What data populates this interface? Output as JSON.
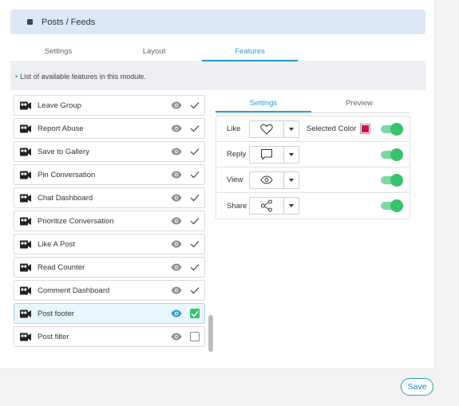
{
  "header": {
    "title": "Posts / Feeds",
    "icon": "module-icon"
  },
  "tabs": [
    {
      "label": "Settings",
      "active": false
    },
    {
      "label": "Layout",
      "active": false
    },
    {
      "label": "Features",
      "active": true
    }
  ],
  "info": {
    "text": "List of available features in this module."
  },
  "features": [
    {
      "label": "Leave Group",
      "enabled": true,
      "selected": false
    },
    {
      "label": "Report Abuse",
      "enabled": true,
      "selected": false
    },
    {
      "label": "Save to Gallery",
      "enabled": true,
      "selected": false
    },
    {
      "label": "Pin Conversation",
      "enabled": true,
      "selected": false
    },
    {
      "label": "Chat Dashboard",
      "enabled": true,
      "selected": false
    },
    {
      "label": "Prioritize Conversation",
      "enabled": true,
      "selected": false
    },
    {
      "label": "Like A Post",
      "enabled": true,
      "selected": false
    },
    {
      "label": "Read Counter",
      "enabled": true,
      "selected": false
    },
    {
      "label": "Comment Dashboard",
      "enabled": true,
      "selected": false
    },
    {
      "label": "Post footer",
      "enabled": true,
      "selected": true
    },
    {
      "label": "Post filter",
      "enabled": false,
      "selected": false
    }
  ],
  "right_tabs": [
    {
      "label": "Settings",
      "active": true
    },
    {
      "label": "Preview",
      "active": false
    }
  ],
  "footer_options": [
    {
      "label": "Like",
      "icon": "heart-icon",
      "enabled": true,
      "selected_color_label": "Selected Color",
      "selected_color": "#d6114e"
    },
    {
      "label": "Reply",
      "icon": "comment-icon",
      "enabled": true
    },
    {
      "label": "View",
      "icon": "eye-icon",
      "enabled": true
    },
    {
      "label": "Share",
      "icon": "share-icon",
      "enabled": true
    }
  ],
  "save_label": "Save",
  "colors": {
    "accent": "#2a9fd6",
    "toggle_on": "#35c46b",
    "save_border": "#1fa3b0"
  }
}
